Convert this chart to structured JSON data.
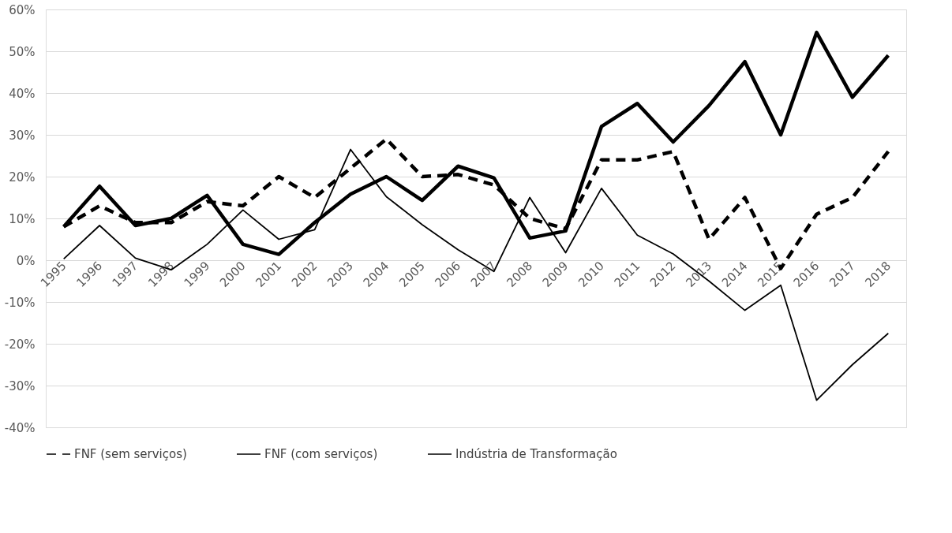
{
  "chart_data": {
    "type": "line",
    "categories": [
      "1995",
      "1996",
      "1997",
      "1998",
      "1999",
      "2000",
      "2001",
      "2002",
      "2003",
      "2004",
      "2005",
      "2006",
      "2007",
      "2008",
      "2009",
      "2010",
      "2011",
      "2012",
      "2013",
      "2014",
      "2015",
      "2016",
      "2017",
      "2018"
    ],
    "series": [
      {
        "name": "FNF (sem serviços)",
        "color": "#000000",
        "line_style": "dashed",
        "values": [
          8,
          13,
          9,
          9,
          14,
          13,
          20,
          15,
          22,
          29,
          20,
          20.5,
          18,
          10,
          7.5,
          24,
          24,
          26,
          5,
          15,
          -2,
          11,
          15,
          26
        ]
      },
      {
        "name": "FNF (com serviços)",
        "color": "#000000",
        "line_style": "solid",
        "values": [
          8,
          17.7,
          8.3,
          10,
          15.5,
          3.8,
          1.4,
          9,
          15.8,
          20,
          14.3,
          22.5,
          19.7,
          5.3,
          7,
          32,
          37.5,
          28.3,
          37,
          47.5,
          30,
          54.5,
          39,
          49
        ]
      },
      {
        "name": "Indústria de Transformação",
        "color": "#000000",
        "line_style": "solid",
        "values": [
          0.3,
          8.3,
          0.5,
          -2.3,
          3.8,
          12,
          5,
          7.3,
          26.5,
          15.2,
          8.5,
          2.5,
          -2.7,
          15,
          1.8,
          17.2,
          6,
          1.5,
          -5,
          -12,
          -6,
          -33.5,
          -25,
          -17.5
        ]
      }
    ],
    "ylim": [
      -40,
      60
    ],
    "yticks": [
      {
        "value": -40,
        "label": "-40%"
      },
      {
        "value": -30,
        "label": "-30%"
      },
      {
        "value": -20,
        "label": "-20%"
      },
      {
        "value": -10,
        "label": "-10%"
      },
      {
        "value": 0,
        "label": "0%"
      },
      {
        "value": 10,
        "label": "10%"
      },
      {
        "value": 20,
        "label": "20%"
      },
      {
        "value": 30,
        "label": "30%"
      },
      {
        "value": 40,
        "label": "40%"
      },
      {
        "value": 50,
        "label": "50%"
      },
      {
        "value": 60,
        "label": "60%"
      }
    ],
    "grid": "y",
    "legend": "bottom",
    "marker": "none"
  }
}
